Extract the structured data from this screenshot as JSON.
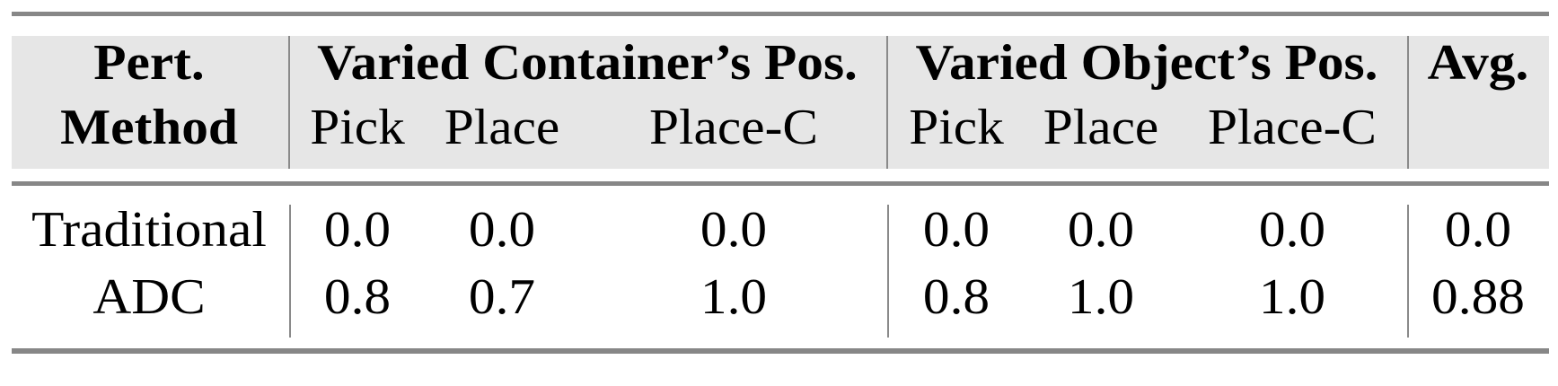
{
  "table": {
    "header": {
      "method_line1": "Pert.",
      "method_line2": "Method",
      "groups": [
        "Varied Container’s Pos.",
        "Varied Object’s Pos.",
        "Avg."
      ],
      "subcolumns": [
        "Pick",
        "Place",
        "Place-C",
        "Pick",
        "Place",
        "Place-C"
      ]
    },
    "rows": [
      {
        "method": "Traditional",
        "values": [
          "0.0",
          "0.0",
          "0.0",
          "0.0",
          "0.0",
          "0.0",
          "0.0"
        ]
      },
      {
        "method": "ADC",
        "values": [
          "0.8",
          "0.7",
          "1.0",
          "0.8",
          "1.0",
          "1.0",
          "0.88"
        ]
      }
    ],
    "colors": {
      "header_bg": "#e6e6e6",
      "rule": "#878787"
    }
  }
}
